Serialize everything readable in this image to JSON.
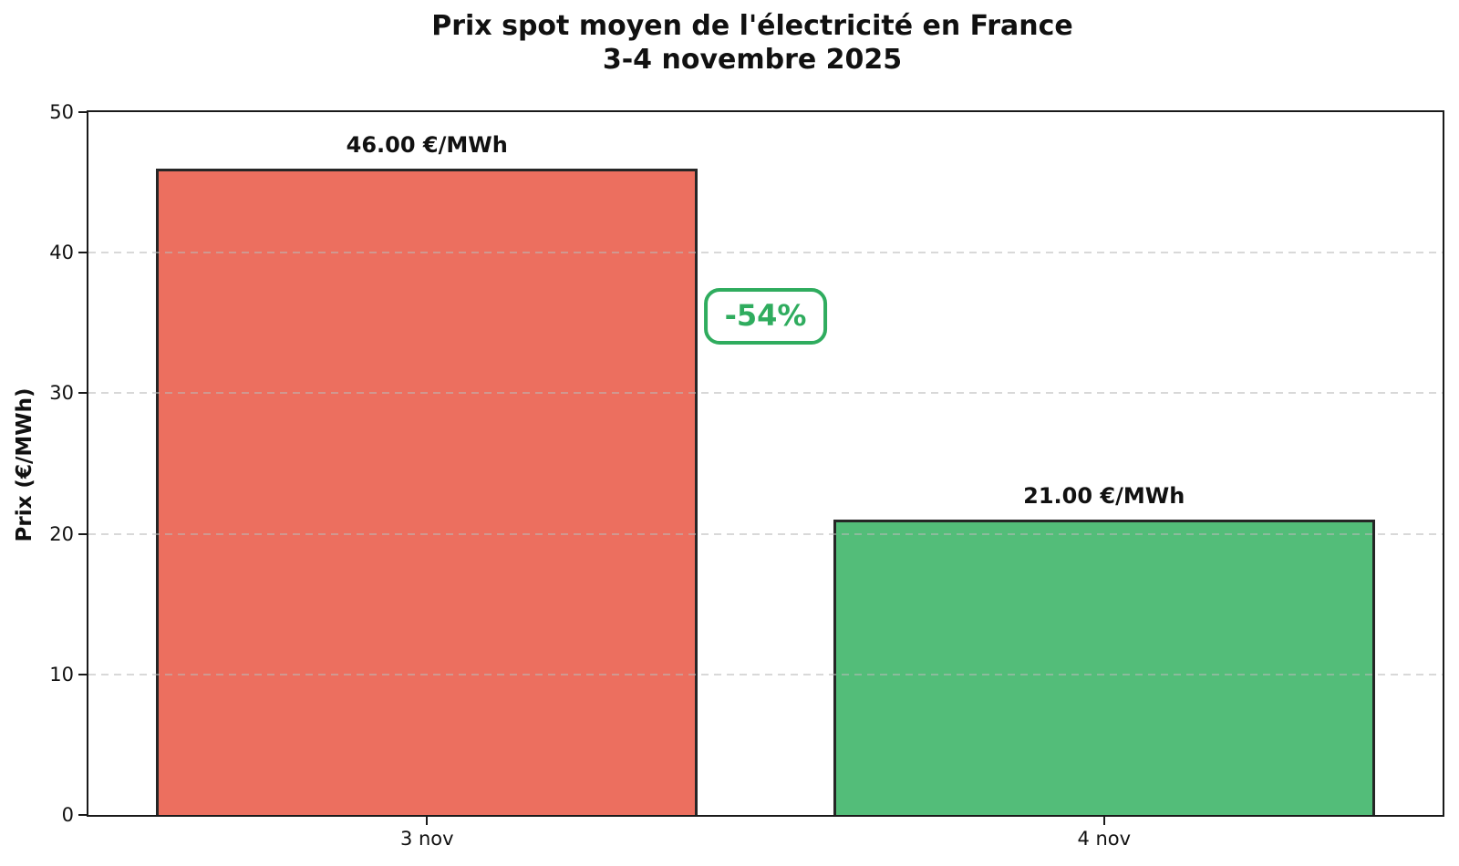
{
  "chart_data": {
    "type": "bar",
    "title": "Prix spot moyen de l'électricité en France",
    "subtitle": "3-4 novembre 2025",
    "ylabel": "Prix (€/MWh)",
    "xlabel": "",
    "categories": [
      "3 nov",
      "4 nov"
    ],
    "values": [
      46.0,
      21.0
    ],
    "bar_labels": [
      "46.00 €/MWh",
      "21.00 €/MWh"
    ],
    "bar_colors": [
      "#ec6f5f",
      "#53bd79"
    ],
    "bar_edge_color": "#262626",
    "ylim": [
      0,
      50
    ],
    "yticks": [
      0,
      10,
      20,
      30,
      40,
      50
    ],
    "grid": "horizontal-dashed",
    "legend": "none",
    "annotations": [
      {
        "text": "-54%",
        "color": "#2fac5e",
        "x_frac": 0.5,
        "y_value": 35.5
      }
    ]
  }
}
